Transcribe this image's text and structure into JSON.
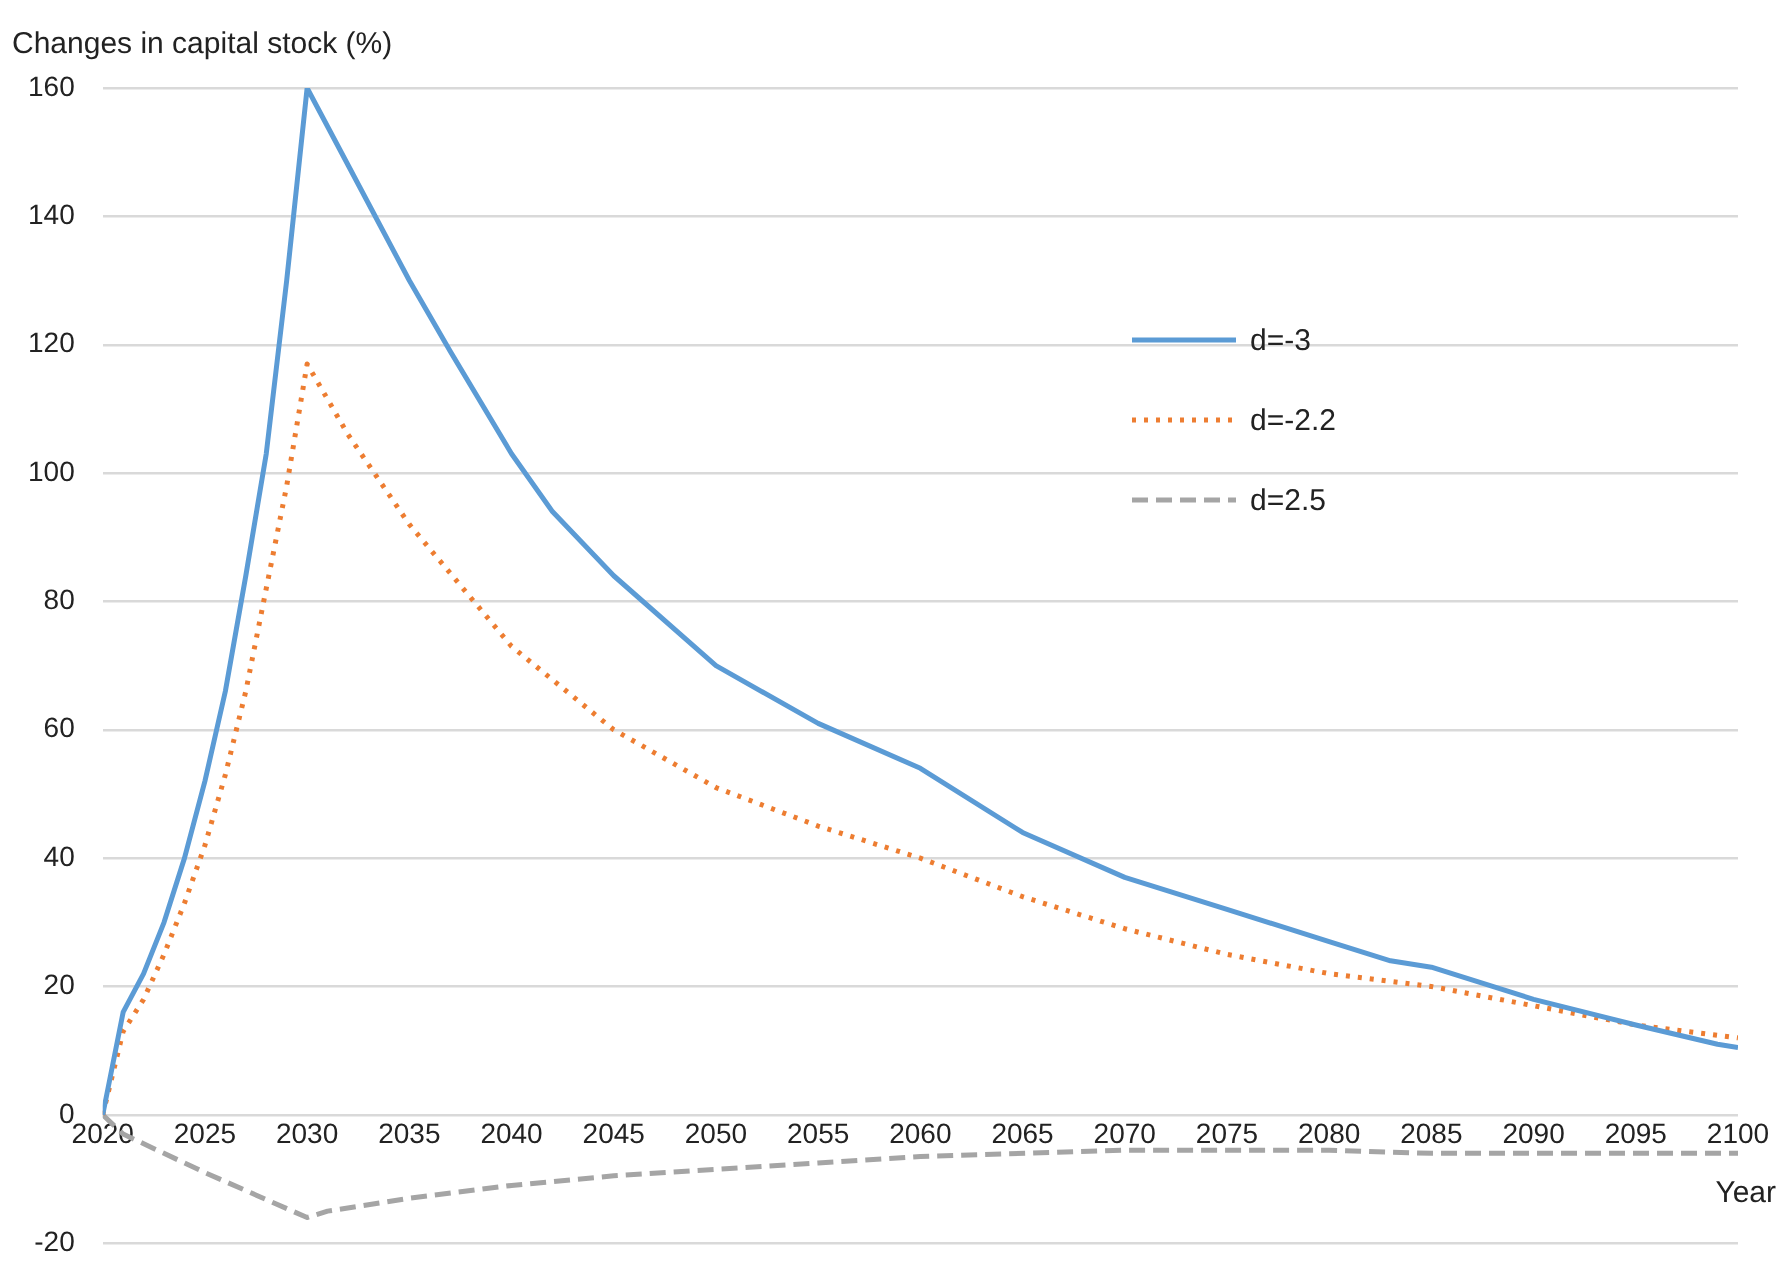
{
  "chart_data": {
    "type": "line",
    "ylabel": "Changes in capital stock (%)",
    "xlabel": "Year",
    "xlim": [
      2020,
      2100
    ],
    "xticks": [
      2020,
      2025,
      2030,
      2035,
      2040,
      2045,
      2050,
      2055,
      2060,
      2065,
      2070,
      2075,
      2080,
      2085,
      2090,
      2095,
      2100
    ],
    "ylim": [
      -20,
      160
    ],
    "yticks": [
      -20,
      0,
      20,
      40,
      60,
      80,
      100,
      120,
      140,
      160
    ],
    "grid": "y",
    "legend": "top right",
    "marker": "none",
    "series": [
      {
        "name": "d=-3",
        "color": "#5b9bd5",
        "line_style": "solid",
        "x": [
          2020,
          2021,
          2022,
          2023,
          2024,
          2025,
          2026,
          2027,
          2028,
          2029,
          2030,
          2031,
          2032,
          2033,
          2035,
          2037,
          2040,
          2042,
          2045,
          2050,
          2055,
          2060,
          2065,
          2070,
          2075,
          2080,
          2083,
          2085,
          2090,
          2095,
          2099,
          2100
        ],
        "values": [
          0,
          16,
          22,
          30,
          40,
          52,
          66,
          84,
          103,
          130,
          160,
          154,
          148,
          142,
          130,
          119,
          103,
          94,
          84,
          70,
          61,
          54,
          44,
          37,
          32,
          27,
          24,
          23,
          18,
          14,
          11,
          10.5
        ]
      },
      {
        "name": "d=-2.2",
        "color": "#ed7d31",
        "line_style": "dotted",
        "x": [
          2020,
          2021,
          2022,
          2023,
          2024,
          2025,
          2026,
          2027,
          2028,
          2029,
          2030,
          2032,
          2035,
          2040,
          2045,
          2050,
          2055,
          2060,
          2065,
          2070,
          2075,
          2080,
          2085,
          2090,
          2095,
          2100
        ],
        "values": [
          0,
          13,
          18,
          25,
          33,
          42,
          53,
          66,
          82,
          98,
          117,
          106,
          92,
          73,
          60,
          51,
          45,
          40,
          34,
          29,
          25,
          22,
          20,
          17,
          14,
          12
        ]
      },
      {
        "name": "d=2.5",
        "color": "#a5a5a5",
        "line_style": "dashed",
        "x": [
          2020,
          2021,
          2025,
          2030,
          2031,
          2035,
          2040,
          2045,
          2050,
          2055,
          2060,
          2070,
          2080,
          2085,
          2090,
          2100
        ],
        "values": [
          0,
          -3,
          -9,
          -16,
          -15,
          -13,
          -11,
          -9.5,
          -8.5,
          -7.5,
          -6.5,
          -5.5,
          -5.5,
          -6,
          -6,
          -6
        ]
      }
    ]
  }
}
